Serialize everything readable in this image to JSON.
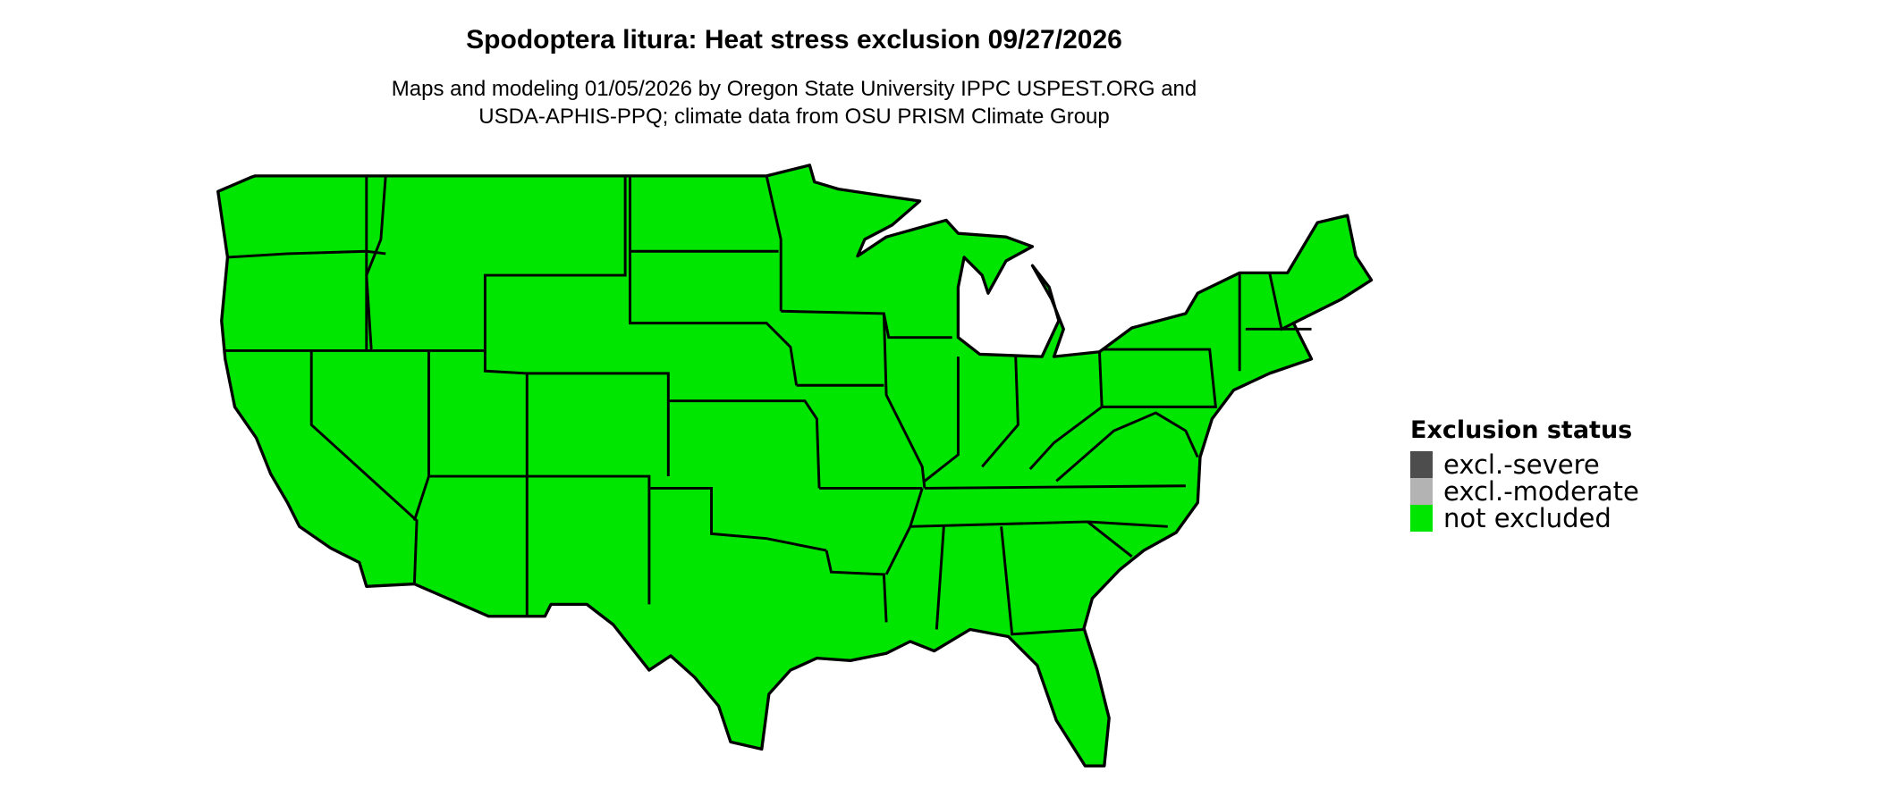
{
  "title": "Spodoptera litura: Heat stress exclusion 09/27/2026",
  "subtitle_lines": [
    "Maps and modeling 01/05/2026 by Oregon State University IPPC USPEST.ORG and",
    "USDA-APHIS-PPQ; climate data from OSU PRISM Climate Group"
  ],
  "map": {
    "region": "contiguous United States",
    "fill_status": "not excluded",
    "fill_color": "#00e600",
    "border_color": "#000000"
  },
  "legend": {
    "title": "Exclusion status",
    "items": [
      {
        "label": "excl.-severe",
        "color": "#4d4d4d"
      },
      {
        "label": "excl.-moderate",
        "color": "#b3b3b3"
      },
      {
        "label": "not excluded",
        "color": "#00e600"
      }
    ]
  }
}
